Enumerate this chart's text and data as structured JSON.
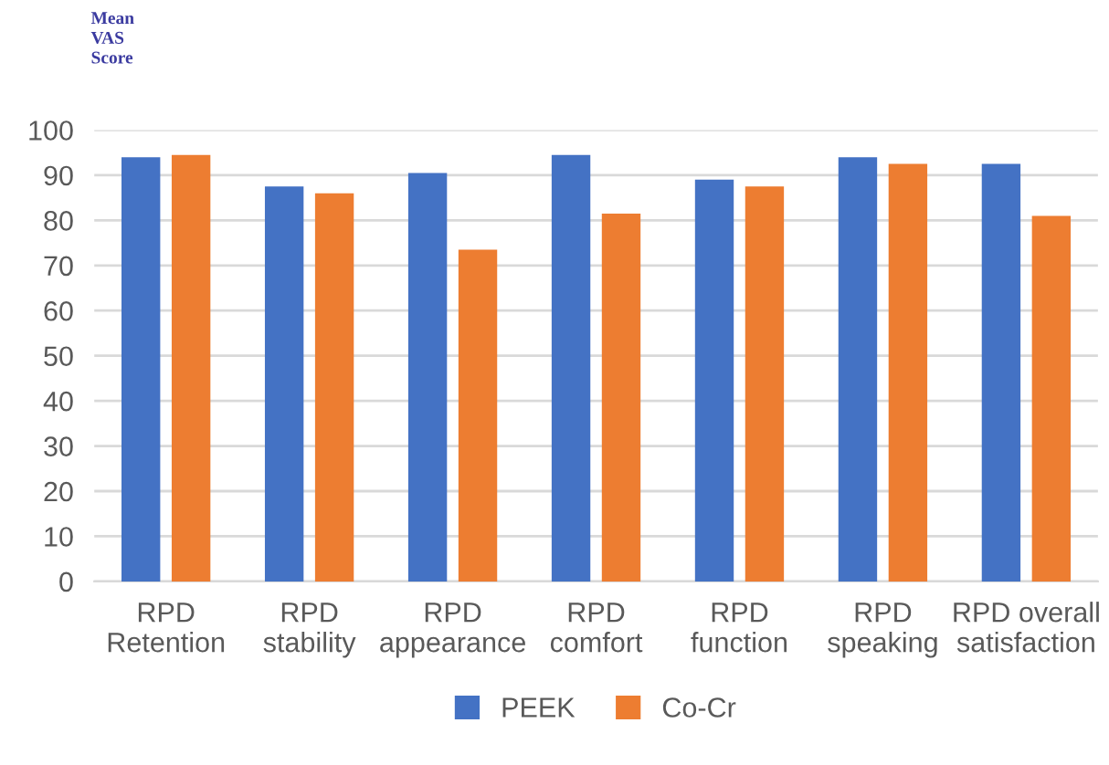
{
  "chart_data": {
    "type": "bar",
    "ylabel": "Mean\nVAS\nScore",
    "categories": [
      "RPD\nRetention",
      "RPD\nstability",
      "RPD\nappearance",
      "RPD\ncomfort",
      "RPD\nfunction",
      "RPD\nspeaking",
      "RPD overall\nsatisfaction"
    ],
    "series": [
      {
        "name": "PEEK",
        "color": "#4472c4",
        "values": [
          94,
          87.5,
          90.5,
          94.5,
          89,
          94,
          92.5
        ]
      },
      {
        "name": "Co-Cr",
        "color": "#ed7d31",
        "values": [
          94.5,
          86,
          73.5,
          81.5,
          87.5,
          92.5,
          81
        ]
      }
    ],
    "ylim": [
      0,
      100
    ],
    "yticks": [
      0,
      10,
      20,
      30,
      40,
      50,
      60,
      70,
      80,
      90,
      100
    ],
    "grid": "y",
    "legend": "bottom"
  }
}
